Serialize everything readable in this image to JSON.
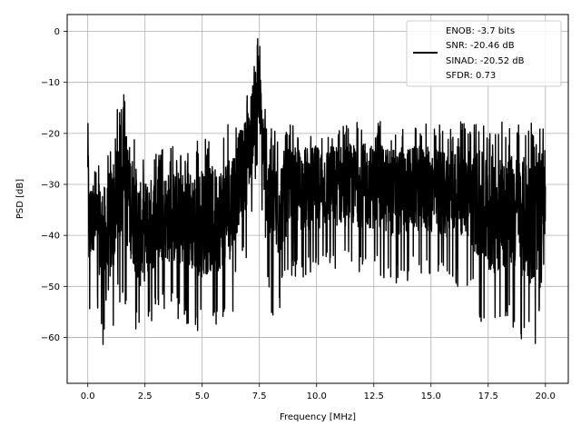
{
  "chart_data": {
    "type": "line",
    "xlabel": "Frequency [MHz]",
    "ylabel": "PSD [dB]",
    "xlim": [
      -0.9,
      21.0
    ],
    "ylim": [
      -69.0,
      3.3
    ],
    "x_ticks": [
      0.0,
      2.5,
      5.0,
      7.5,
      10.0,
      12.5,
      15.0,
      17.5,
      20.0
    ],
    "x_tick_labels": [
      "0.0",
      "2.5",
      "5.0",
      "7.5",
      "10.0",
      "12.5",
      "15.0",
      "17.5",
      "20.0"
    ],
    "y_ticks": [
      0,
      -10,
      -20,
      -30,
      -40,
      -50,
      -60
    ],
    "y_tick_labels": [
      "0",
      "−10",
      "−20",
      "−30",
      "−40",
      "−50",
      "−60"
    ],
    "grid": true,
    "legend": {
      "position": "top-right",
      "lines": [
        "ENOB: -3.7 bits",
        "SNR: -20.46 dB",
        "SINAD: -20.52 dB",
        "SFDR: 0.73"
      ]
    },
    "series": [
      {
        "color": "#000000",
        "x": [
          0.0,
          0.05,
          0.25,
          0.8,
          1.5,
          2.3,
          3.2,
          4.1,
          5.0,
          5.8,
          6.3,
          6.6,
          6.9,
          7.1,
          7.3,
          7.45,
          7.6,
          7.8,
          8.1,
          8.6,
          9.5,
          10.5,
          11.5,
          12.5,
          13.5,
          14.5,
          15.5,
          16.5,
          17.5,
          18.5,
          19.5,
          20.0
        ],
        "upper": [
          -11.5,
          -24,
          -26,
          -24,
          -10.5,
          -24,
          -23,
          -22,
          -21,
          -20.5,
          -17,
          -15,
          -12,
          -8,
          -3,
          0,
          -6,
          -16,
          -19,
          -18.5,
          -18,
          -18,
          -17.5,
          -17.5,
          -18,
          -18,
          -18,
          -17.5,
          -17.5,
          -18,
          -18,
          -18
        ],
        "lower": [
          -40,
          -58,
          -50,
          -66,
          -52,
          -61.5,
          -54,
          -57,
          -60,
          -58,
          -56,
          -48,
          -45,
          -40,
          -30,
          -27,
          -38,
          -45,
          -61.5,
          -50,
          -48,
          -47,
          -47,
          -48,
          -50,
          -48,
          -50,
          -50,
          -61,
          -58,
          -64,
          -48
        ]
      }
    ]
  }
}
